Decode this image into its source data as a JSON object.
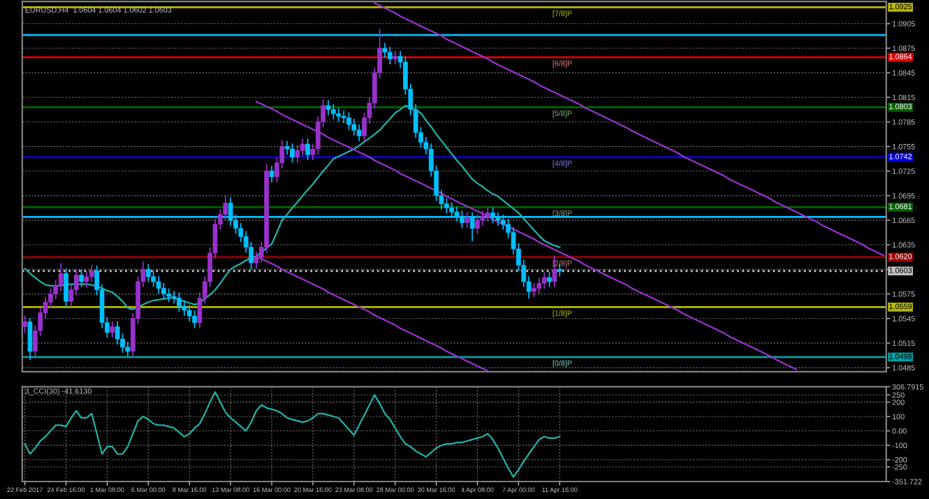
{
  "chart_data": [
    {
      "type": "candlestick",
      "title": "EURUSD,H4  1.0604 1.0604 1.0602 1.0603",
      "categories": [
        null,
        null,
        null,
        null,
        null,
        null,
        null,
        null,
        null,
        null,
        null,
        null,
        null,
        null,
        null,
        null,
        null,
        null,
        null,
        null,
        null,
        null,
        null,
        null,
        null,
        null,
        null,
        null,
        null,
        null,
        null,
        null,
        null,
        null,
        null,
        null,
        null,
        null,
        null,
        null,
        null,
        null,
        null,
        null,
        null,
        null,
        null,
        null,
        null,
        null,
        null,
        null,
        null,
        null,
        null,
        null,
        null,
        null,
        null,
        null,
        null,
        null,
        null,
        null,
        null,
        null,
        null,
        null,
        null,
        null,
        null,
        null,
        null,
        null,
        null,
        null,
        null,
        null,
        null,
        null,
        null,
        null,
        null,
        null,
        null,
        null,
        null,
        null,
        null,
        null,
        null,
        null,
        null,
        null,
        null,
        null,
        null,
        null,
        null,
        null,
        null,
        null,
        null,
        null,
        null,
        null,
        null,
        null,
        null,
        null,
        null,
        null,
        null,
        null,
        null,
        null,
        null,
        null,
        null,
        null,
        null,
        null,
        null,
        null,
        null,
        null,
        null,
        null,
        null,
        null,
        null,
        null,
        null,
        null,
        null,
        null,
        null,
        null,
        null,
        null,
        null,
        null,
        null,
        null,
        null,
        null,
        null,
        null,
        null,
        null,
        null,
        null,
        null,
        null,
        null,
        null,
        null,
        null,
        null,
        null,
        null,
        null,
        null,
        null,
        null,
        null,
        null,
        null
      ],
      "ohlc": [
        [
          1.0535,
          1.0548,
          1.0528,
          1.0541
        ],
        [
          1.0541,
          1.0545,
          1.0495,
          1.0505
        ],
        [
          1.0505,
          1.0536,
          1.0499,
          1.053
        ],
        [
          1.053,
          1.0558,
          1.0524,
          1.0552
        ],
        [
          1.0552,
          1.0571,
          1.0546,
          1.0565
        ],
        [
          1.0565,
          1.0581,
          1.0559,
          1.0575
        ],
        [
          1.0575,
          1.0591,
          1.0569,
          1.0585
        ],
        [
          1.0585,
          1.0612,
          1.0579,
          1.06
        ],
        [
          1.06,
          1.0606,
          1.056,
          1.0566
        ],
        [
          1.0566,
          1.0586,
          1.056,
          1.058
        ],
        [
          1.058,
          1.0604,
          1.0574,
          1.0598
        ],
        [
          1.0598,
          1.0604,
          1.0584,
          1.059
        ],
        [
          1.059,
          1.0602,
          1.0584,
          1.0596
        ],
        [
          1.0596,
          1.061,
          1.059,
          1.0603
        ],
        [
          1.0603,
          1.0609,
          1.0574,
          1.058
        ],
        [
          1.058,
          1.0586,
          1.0534,
          1.054
        ],
        [
          1.054,
          1.0546,
          1.0522,
          1.0528
        ],
        [
          1.0528,
          1.0541,
          1.0522,
          1.0535
        ],
        [
          1.0535,
          1.0541,
          1.0514,
          1.052
        ],
        [
          1.052,
          1.0526,
          1.0504,
          1.051
        ],
        [
          1.051,
          1.0516,
          1.0499,
          1.0505
        ],
        [
          1.0505,
          1.0551,
          1.0499,
          1.0545
        ],
        [
          1.0545,
          1.0596,
          1.0539,
          1.059
        ],
        [
          1.059,
          1.0614,
          1.0584,
          1.0605
        ],
        [
          1.0605,
          1.0611,
          1.059,
          1.0596
        ],
        [
          1.0596,
          1.0602,
          1.0584,
          1.059
        ],
        [
          1.059,
          1.0596,
          1.0576,
          1.0582
        ],
        [
          1.0582,
          1.0588,
          1.0569,
          1.0575
        ],
        [
          1.0575,
          1.0581,
          1.0566,
          1.0572
        ],
        [
          1.0572,
          1.0578,
          1.0564,
          1.057
        ],
        [
          1.057,
          1.0576,
          1.0554,
          1.056
        ],
        [
          1.056,
          1.0566,
          1.0549,
          1.0555
        ],
        [
          1.0555,
          1.0561,
          1.0542,
          1.0548
        ],
        [
          1.0548,
          1.0554,
          1.0534,
          1.054
        ],
        [
          1.054,
          1.0576,
          1.0534,
          1.057
        ],
        [
          1.057,
          1.0596,
          1.0564,
          1.059
        ],
        [
          1.059,
          1.0631,
          1.0584,
          1.0625
        ],
        [
          1.0625,
          1.0666,
          1.0619,
          1.066
        ],
        [
          1.066,
          1.0678,
          1.0654,
          1.0672
        ],
        [
          1.0672,
          1.0694,
          1.0666,
          1.0686
        ],
        [
          1.0686,
          1.0692,
          1.0659,
          1.0665
        ],
        [
          1.0665,
          1.0671,
          1.0649,
          1.0655
        ],
        [
          1.0655,
          1.0661,
          1.0639,
          1.0645
        ],
        [
          1.0645,
          1.0651,
          1.0626,
          1.0632
        ],
        [
          1.0632,
          1.0638,
          1.0605,
          1.0613
        ],
        [
          1.0613,
          1.0626,
          1.0607,
          1.062
        ],
        [
          1.062,
          1.0638,
          1.0614,
          1.0632
        ],
        [
          1.0632,
          1.0733,
          1.0626,
          1.0725
        ],
        [
          1.0725,
          1.0731,
          1.0712,
          1.0718
        ],
        [
          1.0718,
          1.0741,
          1.0712,
          1.0735
        ],
        [
          1.0735,
          1.0762,
          1.0729,
          1.0755
        ],
        [
          1.0755,
          1.0761,
          1.0746,
          1.0752
        ],
        [
          1.0752,
          1.0758,
          1.0736,
          1.0742
        ],
        [
          1.0742,
          1.0756,
          1.0736,
          1.075
        ],
        [
          1.075,
          1.0764,
          1.0744,
          1.0758
        ],
        [
          1.0758,
          1.0764,
          1.0739,
          1.0745
        ],
        [
          1.0745,
          1.0758,
          1.0739,
          1.0752
        ],
        [
          1.0752,
          1.0791,
          1.0746,
          1.0785
        ],
        [
          1.0785,
          1.0812,
          1.0779,
          1.0805
        ],
        [
          1.0805,
          1.0811,
          1.0794,
          1.08
        ],
        [
          1.08,
          1.0806,
          1.0789,
          1.0795
        ],
        [
          1.0795,
          1.0801,
          1.0786,
          1.0792
        ],
        [
          1.0792,
          1.0798,
          1.0784,
          1.079
        ],
        [
          1.079,
          1.0796,
          1.0776,
          1.0782
        ],
        [
          1.0782,
          1.0788,
          1.0769,
          1.0775
        ],
        [
          1.0775,
          1.0781,
          1.0762,
          1.0768
        ],
        [
          1.0768,
          1.0796,
          1.0762,
          1.079
        ],
        [
          1.079,
          1.0814,
          1.0784,
          1.0808
        ],
        [
          1.0808,
          1.0851,
          1.0802,
          1.0845
        ],
        [
          1.0845,
          1.0898,
          1.0839,
          1.0875
        ],
        [
          1.0875,
          1.0881,
          1.0864,
          1.087
        ],
        [
          1.087,
          1.0876,
          1.0856,
          1.0862
        ],
        [
          1.0862,
          1.0871,
          1.0856,
          1.0865
        ],
        [
          1.0865,
          1.0871,
          1.0852,
          1.0858
        ],
        [
          1.0858,
          1.0864,
          1.0819,
          1.0825
        ],
        [
          1.0825,
          1.0831,
          1.0794,
          1.08
        ],
        [
          1.08,
          1.0806,
          1.0766,
          1.0772
        ],
        [
          1.0772,
          1.0778,
          1.0754,
          1.076
        ],
        [
          1.076,
          1.0766,
          1.0746,
          1.0752
        ],
        [
          1.0752,
          1.0758,
          1.0719,
          1.0725
        ],
        [
          1.0725,
          1.0731,
          1.0689,
          1.0695
        ],
        [
          1.0695,
          1.0701,
          1.0679,
          1.0685
        ],
        [
          1.0685,
          1.0691,
          1.0674,
          1.068
        ],
        [
          1.068,
          1.0686,
          1.0669,
          1.0675
        ],
        [
          1.0675,
          1.0681,
          1.0664,
          1.067
        ],
        [
          1.067,
          1.0676,
          1.0656,
          1.0662
        ],
        [
          1.0662,
          1.0674,
          1.0656,
          1.0668
        ],
        [
          1.0668,
          1.0674,
          1.064,
          1.0655
        ],
        [
          1.0655,
          1.0671,
          1.0649,
          1.0665
        ],
        [
          1.0665,
          1.0676,
          1.0659,
          1.067
        ],
        [
          1.067,
          1.068,
          1.0664,
          1.0674
        ],
        [
          1.0674,
          1.068,
          1.0662,
          1.0668
        ],
        [
          1.0668,
          1.0674,
          1.0659,
          1.0665
        ],
        [
          1.0665,
          1.0671,
          1.0654,
          1.066
        ],
        [
          1.066,
          1.0666,
          1.0644,
          1.065
        ],
        [
          1.065,
          1.0656,
          1.0624,
          1.063
        ],
        [
          1.063,
          1.0636,
          1.0604,
          1.061
        ],
        [
          1.061,
          1.0616,
          1.0584,
          1.059
        ],
        [
          1.059,
          1.0596,
          1.057,
          1.0578
        ],
        [
          1.0578,
          1.0588,
          1.0572,
          1.0582
        ],
        [
          1.0582,
          1.0594,
          1.0576,
          1.0588
        ],
        [
          1.0588,
          1.0601,
          1.0582,
          1.0595
        ],
        [
          1.0595,
          1.0601,
          1.0584,
          1.059
        ],
        [
          1.059,
          1.0621,
          1.0584,
          1.0605
        ],
        [
          1.0605,
          1.0611,
          1.0597,
          1.0603
        ],
        null,
        null,
        null,
        null,
        null,
        null,
        null,
        null,
        null,
        null,
        null,
        null,
        null,
        null,
        null,
        null,
        null,
        null,
        null,
        null,
        null,
        null,
        null,
        null,
        null,
        null,
        null,
        null,
        null,
        null,
        null,
        null,
        null,
        null,
        null,
        null,
        null,
        null,
        null,
        null,
        null,
        null,
        null,
        null,
        null,
        null,
        null,
        null,
        null,
        null,
        null,
        null,
        null,
        null,
        null,
        null,
        null,
        null,
        null,
        null,
        null,
        null,
        null
      ],
      "colors": [
        "#9932cc",
        "#00bfff",
        "#9932cc",
        "#9932cc",
        "#9932cc",
        "#9932cc",
        "#9932cc",
        "#9932cc",
        "#00bfff",
        "#9932cc",
        "#9932cc",
        "#00bfff",
        "#9932cc",
        "#9932cc",
        "#00bfff",
        "#00bfff",
        "#00bfff",
        "#9932cc",
        "#00bfff",
        "#00bfff",
        "#00bfff",
        "#9932cc",
        "#9932cc",
        "#9932cc",
        "#00bfff",
        "#00bfff",
        "#00bfff",
        "#00bfff",
        "#00bfff",
        "#00bfff",
        "#00bfff",
        "#00bfff",
        "#00bfff",
        "#00bfff",
        "#9932cc",
        "#9932cc",
        "#9932cc",
        "#9932cc",
        "#9932cc",
        "#9932cc",
        "#00bfff",
        "#00bfff",
        "#00bfff",
        "#00bfff",
        "#00bfff",
        "#9932cc",
        "#9932cc",
        "#9932cc",
        "#00bfff",
        "#9932cc",
        "#9932cc",
        "#00bfff",
        "#00bfff",
        "#9932cc",
        "#9932cc",
        "#00bfff",
        "#9932cc",
        "#9932cc",
        "#9932cc",
        "#00bfff",
        "#00bfff",
        "#00bfff",
        "#00bfff",
        "#00bfff",
        "#00bfff",
        "#00bfff",
        "#9932cc",
        "#9932cc",
        "#9932cc",
        "#9932cc",
        "#00bfff",
        "#00bfff",
        "#9932cc",
        "#00bfff",
        "#00bfff",
        "#00bfff",
        "#00bfff",
        "#00bfff",
        "#00bfff",
        "#00bfff",
        "#00bfff",
        "#00bfff",
        "#00bfff",
        "#00bfff",
        "#00bfff",
        "#00bfff",
        "#9932cc",
        "#00bfff",
        "#9932cc",
        "#9932cc",
        "#9932cc",
        "#00bfff",
        "#00bfff",
        "#00bfff",
        "#00bfff",
        "#00bfff",
        "#00bfff",
        "#00bfff",
        "#00bfff",
        "#9932cc",
        "#9932cc",
        "#9932cc",
        "#00bfff",
        "#9932cc",
        "#00bfff",
        null,
        null,
        null,
        null,
        null,
        null,
        null,
        null,
        null,
        null,
        null,
        null,
        null,
        null,
        null,
        null,
        null,
        null,
        null,
        null,
        null,
        null,
        null,
        null,
        null,
        null,
        null,
        null,
        null,
        null,
        null,
        null,
        null,
        null,
        null,
        null,
        null,
        null,
        null,
        null,
        null,
        null,
        null,
        null,
        null,
        null,
        null,
        null,
        null,
        null,
        null,
        null,
        null,
        null,
        null,
        null,
        null,
        null,
        null,
        null,
        null,
        null,
        null
      ],
      "series": [
        {
          "type": "line",
          "color": "#20b2aa",
          "values": [
            1.0606,
            1.06,
            1.0595,
            1.059,
            1.0586,
            1.0585,
            1.0585,
            1.0585,
            1.0586,
            1.0587,
            1.0587,
            1.0587,
            1.0587,
            1.0586,
            1.0584,
            1.0582,
            1.0579,
            1.0577,
            1.0572,
            1.0566,
            1.0558,
            1.0556,
            1.0559,
            1.0562,
            1.0565,
            1.0567,
            1.0568,
            1.0569,
            1.057,
            1.057,
            1.0568,
            1.0566,
            1.0564,
            1.0562,
            1.0564,
            1.0569,
            1.0574,
            1.058,
            1.0588,
            1.0597,
            1.0605,
            1.0609,
            1.0612,
            1.0616,
            1.0619,
            1.0621,
            1.0626,
            1.0631,
            1.0636,
            1.065,
            1.0665,
            1.0672,
            1.068,
            1.0687,
            1.0695,
            1.0702,
            1.0709,
            1.0717,
            1.0725,
            1.0732,
            1.074,
            1.0743,
            1.0746,
            1.0749,
            1.0752,
            1.0756,
            1.0761,
            1.0765,
            1.077,
            1.0775,
            1.0782,
            1.0789,
            1.0796,
            1.08,
            1.0805,
            1.0803,
            1.0799,
            1.0796,
            1.0787,
            1.0779,
            1.077,
            1.0762,
            1.0754,
            1.0746,
            1.0738,
            1.0731,
            1.0723,
            1.0715,
            1.071,
            1.0706,
            1.0701,
            1.0697,
            1.0694,
            1.0689,
            1.0684,
            1.0679,
            1.0674,
            1.0667,
            1.066,
            1.0653,
            1.0646,
            1.064,
            1.0637,
            1.0634,
            1.0632,
            null,
            null,
            null,
            null,
            null,
            null,
            null,
            null,
            null,
            null,
            null,
            null,
            null,
            null,
            null,
            null,
            null,
            null,
            null,
            null,
            null,
            null,
            null,
            null,
            null,
            null,
            null,
            null,
            null,
            null,
            null,
            null,
            null,
            null,
            null,
            null,
            null,
            null,
            null,
            null,
            null,
            null,
            null,
            null,
            null,
            null,
            null,
            null,
            null,
            null,
            null,
            null,
            null,
            null,
            null,
            null,
            null,
            null,
            null,
            null,
            null,
            null,
            null
          ]
        },
        {
          "type": "line",
          "color": "#9932cc",
          "values": [
            null,
            null,
            null,
            null,
            null,
            null,
            null,
            null,
            null,
            null,
            null,
            null,
            null,
            null,
            null,
            null,
            null,
            null,
            null,
            null,
            null,
            null,
            null,
            null,
            null,
            null,
            null,
            null,
            null,
            null,
            null,
            null,
            null,
            null,
            null,
            null,
            null,
            null,
            null,
            null,
            null,
            null,
            null,
            null,
            null,
            null,
            null,
            null,
            null,
            null,
            null,
            null,
            null,
            null,
            null,
            null,
            null,
            null,
            null,
            null,
            null,
            null,
            null,
            null,
            null,
            null,
            null,
            null,
            1.093,
            1.0927,
            1.0924,
            1.0921,
            1.0918,
            1.0914,
            1.0911,
            1.0908,
            1.0905,
            1.0902,
            1.0899,
            1.0896,
            1.0893,
            1.089,
            1.0886,
            1.0883,
            1.088,
            1.0877,
            1.0874,
            1.0871,
            1.0868,
            1.0865,
            1.0862,
            1.0858,
            1.0855,
            1.0852,
            1.0849,
            1.0846,
            1.0843,
            1.084,
            1.0837,
            1.0834,
            1.083,
            1.0827,
            1.0824,
            1.0821,
            1.0818,
            1.0815,
            1.0812,
            1.0809,
            1.0806,
            1.0802,
            1.0799,
            1.0796,
            1.0793,
            1.079,
            1.0787,
            1.0784,
            1.0781,
            1.0778,
            1.0774,
            1.0771,
            1.0768,
            1.0765,
            1.0762,
            1.0759,
            1.0756,
            1.0753,
            1.075,
            1.0747,
            1.0743,
            1.074,
            1.0737,
            1.0734,
            1.0731,
            1.0728,
            1.0725,
            1.0722,
            1.0719,
            1.0715,
            1.0712,
            1.0709,
            1.0706,
            1.0703,
            1.07,
            1.0697,
            1.0694,
            1.0691,
            1.0687,
            1.0684,
            1.0681,
            1.0678,
            1.0675,
            1.0672,
            1.0669,
            1.0666,
            1.0663,
            1.0659,
            1.0656,
            1.0653,
            1.065,
            1.0647,
            1.0644,
            1.0641,
            1.0638,
            1.0635,
            1.0631,
            1.0628,
            1.0625,
            1.0622
          ]
        },
        {
          "type": "line",
          "color": "#9932cc",
          "values": [
            null,
            null,
            null,
            null,
            null,
            null,
            null,
            null,
            null,
            null,
            null,
            null,
            null,
            null,
            null,
            null,
            null,
            null,
            null,
            null,
            null,
            null,
            null,
            null,
            null,
            null,
            null,
            null,
            null,
            null,
            null,
            null,
            null,
            null,
            null,
            null,
            null,
            null,
            null,
            null,
            null,
            null,
            null,
            null,
            null,
            1.081,
            1.0807,
            1.0804,
            1.0801,
            1.0798,
            1.0794,
            1.0791,
            1.0788,
            1.0785,
            1.0782,
            1.0779,
            1.0776,
            1.0773,
            1.077,
            1.0766,
            1.0763,
            1.076,
            1.0757,
            1.0754,
            1.0751,
            1.0748,
            1.0745,
            1.0742,
            1.0738,
            1.0735,
            1.0732,
            1.0729,
            1.0726,
            1.0722,
            1.0719,
            1.0716,
            1.0713,
            1.071,
            1.0707,
            1.0704,
            1.0701,
            1.0698,
            1.0694,
            1.0691,
            1.0688,
            1.0685,
            1.0682,
            1.0679,
            1.0676,
            1.0673,
            1.067,
            1.0666,
            1.0663,
            1.066,
            1.0657,
            1.0654,
            1.0651,
            1.0648,
            1.0645,
            1.0642,
            1.0638,
            1.0635,
            1.0632,
            1.0629,
            1.0626,
            1.0623,
            1.062,
            1.0617,
            1.0614,
            1.061,
            1.0607,
            1.0604,
            1.0601,
            1.0598,
            1.0595,
            1.0592,
            1.0589,
            1.0586,
            1.0582,
            1.0579,
            1.0576,
            1.0573,
            1.057,
            1.0567,
            1.0564,
            1.0561,
            1.0558,
            1.0555,
            1.0551,
            1.0548,
            1.0545,
            1.0542,
            1.0539,
            1.0536,
            1.0533,
            1.053,
            1.0527,
            1.0523,
            1.052,
            1.0517,
            1.0514,
            1.0511,
            1.0508,
            1.0505,
            1.0502,
            1.0499,
            1.0495,
            1.0492,
            1.0489,
            1.0486,
            1.0483,
            null,
            null,
            null,
            null,
            null,
            null,
            null,
            null,
            null,
            null,
            null,
            null,
            null,
            null,
            null,
            null,
            null
          ]
        },
        {
          "type": "line",
          "color": "#9932cc",
          "values": [
            null,
            null,
            null,
            null,
            null,
            null,
            null,
            null,
            null,
            null,
            null,
            null,
            null,
            null,
            null,
            null,
            null,
            null,
            null,
            null,
            null,
            null,
            null,
            null,
            null,
            null,
            null,
            null,
            null,
            null,
            null,
            null,
            null,
            null,
            null,
            null,
            null,
            null,
            null,
            null,
            null,
            null,
            null,
            null,
            null,
            1.0621,
            1.0618,
            1.0615,
            1.0612,
            1.0609,
            1.0605,
            1.0602,
            1.0599,
            1.0596,
            1.0593,
            1.059,
            1.0587,
            1.0584,
            1.0581,
            1.0577,
            1.0574,
            1.0571,
            1.0568,
            1.0565,
            1.0562,
            1.0559,
            1.0556,
            1.0553,
            1.0549,
            1.0546,
            1.0543,
            1.054,
            1.0537,
            1.0533,
            1.053,
            1.0527,
            1.0524,
            1.0521,
            1.0518,
            1.0515,
            1.0512,
            1.0509,
            1.0505,
            1.0502,
            1.0499,
            1.0496,
            1.0493,
            1.049,
            1.0487,
            1.0484,
            1.0481,
            null,
            null,
            null,
            null,
            null,
            null,
            null,
            null,
            null,
            null,
            null,
            null,
            null,
            null,
            null,
            null,
            null,
            null,
            null,
            null,
            null,
            null,
            null,
            null,
            null,
            null,
            null,
            null,
            null,
            null,
            null,
            null,
            null,
            null,
            null,
            null,
            null,
            null,
            null,
            null,
            null,
            null,
            null,
            null,
            null,
            null,
            null,
            null,
            null,
            null,
            null,
            null,
            null,
            null,
            null,
            null,
            null,
            null,
            null,
            null,
            null,
            null,
            null,
            null,
            null,
            null,
            null,
            null,
            null,
            null,
            null,
            null,
            null,
            null,
            null,
            null,
            null
          ]
        }
      ],
      "ylim": [
        1.048,
        1.0932
      ],
      "yticks": [
        1.0905,
        1.0875,
        1.0845,
        1.0815,
        1.0785,
        1.0755,
        1.0725,
        1.0695,
        1.0665,
        1.0635,
        {
          "value": 1.0605,
          "label": null
        },
        1.0575,
        1.0545,
        1.0515,
        1.0485
      ],
      "tick_labels": "y",
      "grid": true,
      "ref_lines": [
        {
          "axis": "y",
          "value": 1.0925,
          "label": "1.0925",
          "color": "#b8b800"
        },
        {
          "axis": "y",
          "value": 1.0891,
          "color": "#00bfff"
        },
        {
          "axis": "y",
          "value": 1.0864,
          "label": "1.0864",
          "color": "#e00000"
        },
        {
          "axis": "y",
          "value": 1.0803,
          "label": "1.0803",
          "color": "#006400"
        },
        {
          "axis": "y",
          "value": 1.0742,
          "label": "1.0742",
          "color": "#0000e0"
        },
        {
          "axis": "y",
          "value": 1.0681,
          "label": "1.0681",
          "color": "#006400"
        },
        {
          "axis": "y",
          "value": 1.0669,
          "color": "#00bfff"
        },
        {
          "axis": "y",
          "value": 1.062,
          "label": "1.0620",
          "color": "#a00000"
        },
        {
          "axis": "y",
          "value": 1.0603,
          "label": "1.0603",
          "color": "#c0c0c0",
          "line_style": "dotted"
        },
        {
          "axis": "y",
          "value": 1.0559,
          "label": "1.0559",
          "color": "#b8b800"
        },
        {
          "axis": "y",
          "value": 1.0498,
          "label": "1.0498",
          "color": "#00a0a0"
        }
      ],
      "annotations": [
        {
          "text": "[7/8]P",
          "y": 1.0925
        },
        {
          "text": "[6/8]P",
          "y": 1.0864
        },
        {
          "text": "[5/8]P",
          "y": 1.0803
        },
        {
          "text": "[4/8]P",
          "y": 1.0742
        },
        {
          "text": "[3/8]P",
          "y": 1.0681
        },
        {
          "text": "[2/8]P",
          "y": 1.062
        },
        {
          "text": "[1/8]P",
          "y": 1.0559
        },
        {
          "text": "[0/8]P",
          "y": 1.0498
        }
      ]
    },
    {
      "type": "line",
      "title": "3_CCI(30) -41.6130",
      "series": [
        {
          "color": "#20b2aa",
          "values": [
            -90,
            -160,
            -120,
            -70,
            -40,
            0,
            40,
            40,
            30,
            90,
            140,
            90,
            90,
            120,
            -20,
            -160,
            -110,
            -110,
            -160,
            -160,
            -110,
            -20,
            70,
            100,
            80,
            50,
            40,
            40,
            30,
            20,
            -10,
            -40,
            -20,
            20,
            50,
            120,
            200,
            270,
            200,
            130,
            90,
            60,
            30,
            0,
            60,
            140,
            180,
            160,
            150,
            140,
            120,
            90,
            80,
            70,
            60,
            70,
            90,
            120,
            120,
            110,
            100,
            90,
            50,
            10,
            -30,
            40,
            110,
            180,
            250,
            190,
            120,
            80,
            20,
            -40,
            -90,
            -110,
            -140,
            -160,
            -180,
            -150,
            -120,
            -100,
            -90,
            -90,
            -80,
            -80,
            -70,
            -60,
            -50,
            -40,
            -20,
            -60,
            -120,
            -190,
            -260,
            -320,
            -270,
            -210,
            -160,
            -110,
            -60,
            -40,
            -50,
            -50,
            -40,
            null,
            null,
            null,
            null,
            null,
            null,
            null,
            null,
            null,
            null,
            null,
            null,
            null,
            null,
            null,
            null,
            null,
            null,
            null,
            null,
            null,
            null,
            null,
            null,
            null,
            null,
            null,
            null,
            null,
            null,
            null,
            null,
            null,
            null,
            null,
            null,
            null,
            null,
            null,
            null,
            null,
            null,
            null,
            null,
            null,
            null,
            null,
            null,
            null,
            null,
            null,
            null,
            null,
            null,
            null,
            null,
            null,
            null,
            null,
            null,
            null,
            null,
            null
          ]
        }
      ],
      "categories": [
        "22 Feb 2017",
        null,
        null,
        null,
        null,
        null,
        null,
        null,
        "24 Feb 16:00",
        null,
        null,
        null,
        null,
        null,
        null,
        null,
        "1 Mar 08:00",
        null,
        null,
        null,
        null,
        null,
        null,
        null,
        "6 Mar 00:00",
        null,
        null,
        null,
        null,
        null,
        null,
        null,
        "8 Mar 16:00",
        null,
        null,
        null,
        null,
        null,
        null,
        null,
        "13 Mar 08:00",
        null,
        null,
        null,
        null,
        null,
        null,
        null,
        "16 Mar 00:00",
        null,
        null,
        null,
        null,
        null,
        null,
        null,
        "20 Mar 16:00",
        null,
        null,
        null,
        null,
        null,
        null,
        null,
        "23 Mar 08:00",
        null,
        null,
        null,
        null,
        null,
        null,
        null,
        "28 Mar 00:00",
        null,
        null,
        null,
        null,
        null,
        null,
        null,
        "30 Mar 16:00",
        null,
        null,
        null,
        null,
        null,
        null,
        null,
        "4 Apr 08:00",
        null,
        null,
        null,
        null,
        null,
        null,
        null,
        "7 Apr 00:00",
        null,
        null,
        null,
        null,
        null,
        null,
        null,
        "11 Apr 16:00",
        null,
        null,
        null,
        null,
        null,
        null,
        null,
        null,
        null,
        null,
        null,
        null,
        null,
        null,
        null,
        null,
        null,
        null,
        null,
        null,
        null,
        null,
        null,
        null,
        null,
        null,
        null,
        null,
        null,
        null,
        null,
        null,
        null,
        null,
        null,
        null,
        null,
        null,
        null,
        null,
        null,
        null,
        null,
        null,
        null,
        null,
        null,
        null,
        null,
        null,
        null,
        null,
        null,
        null,
        null,
        null,
        null,
        null,
        null,
        null,
        null,
        null,
        null
      ],
      "ylim": [
        -351.722,
        306.7915
      ],
      "yticks": [
        {
          "value": 306.7915,
          "label": "306.7915"
        },
        250,
        200,
        100,
        {
          "value": 0,
          "label": "0.00"
        },
        -100,
        -200,
        -250,
        {
          "value": -351.722,
          "label": "-351.722"
        }
      ],
      "grid": true
    }
  ]
}
